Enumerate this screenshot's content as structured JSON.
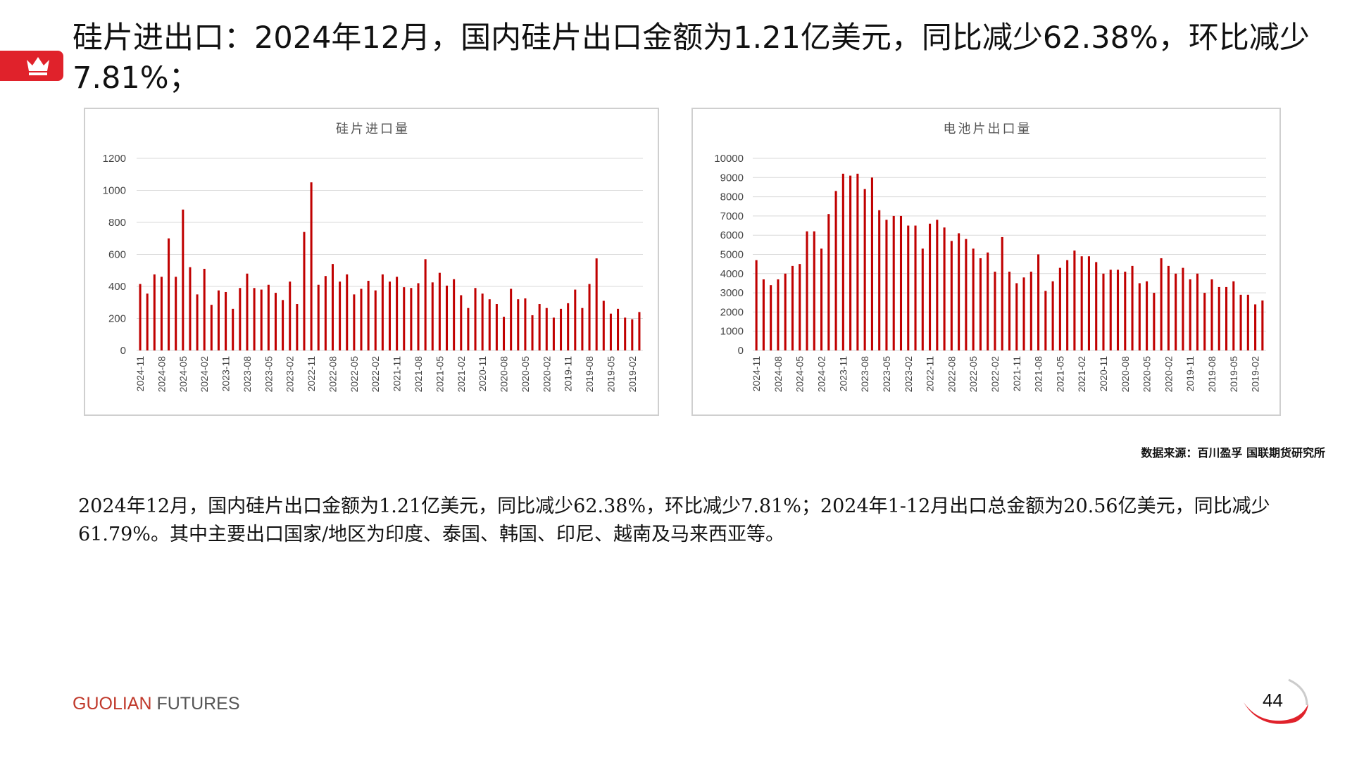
{
  "slide": {
    "heading": "硅片进出口：2024年12月，国内硅片出口金额为1.21亿美元，同比减少62.38%，环比减少7.81%；",
    "source": "数据来源：百川盈孚 国联期货研究所",
    "body": "2024年12月，国内硅片出口金额为1.21亿美元，同比减少62.38%，环比减少7.81%；2024年1-12月出口总金额为20.56亿美元，同比减少61.79%。其中主要出口国家/地区为印度、泰国、韩国、印尼、越南及马来西亚等。",
    "footer_brand": "GUOLIAN",
    "footer_sub": " FUTURES",
    "page_number": "44",
    "logo_icon": "crown-icon",
    "accent_color": "#e0222b",
    "bar_color": "#c00000"
  },
  "chart_data": [
    {
      "type": "bar",
      "title": "硅片进口量",
      "ylim": [
        0,
        1200
      ],
      "yticks": [
        0,
        200,
        400,
        600,
        800,
        1000,
        1200
      ],
      "grid": true,
      "tick_labels": [
        "2024-11",
        "2024-08",
        "2024-05",
        "2024-02",
        "2023-11",
        "2023-08",
        "2023-05",
        "2023-02",
        "2022-11",
        "2022-08",
        "2022-05",
        "2022-02",
        "2021-11",
        "2021-08",
        "2021-05",
        "2021-02",
        "2020-11",
        "2020-08",
        "2020-05",
        "2020-02",
        "2019-11",
        "2019-08",
        "2019-05",
        "2019-02"
      ],
      "values": [
        415,
        355,
        475,
        460,
        700,
        460,
        880,
        520,
        350,
        510,
        285,
        375,
        365,
        260,
        390,
        480,
        390,
        380,
        410,
        360,
        315,
        430,
        290,
        740,
        1050,
        410,
        465,
        540,
        430,
        475,
        350,
        385,
        435,
        375,
        475,
        430,
        460,
        395,
        390,
        420,
        570,
        425,
        485,
        405,
        445,
        345,
        265,
        390,
        355,
        320,
        290,
        210,
        385,
        320,
        325,
        220,
        290,
        265,
        205,
        260,
        295,
        380,
        265,
        415,
        575,
        310,
        230,
        260,
        205,
        195,
        240
      ],
      "xlabel": "",
      "ylabel": ""
    },
    {
      "type": "bar",
      "title": "电池片出口量",
      "ylim": [
        0,
        10000
      ],
      "yticks": [
        0,
        1000,
        2000,
        3000,
        4000,
        5000,
        6000,
        7000,
        8000,
        9000,
        10000
      ],
      "grid": true,
      "tick_labels": [
        "2024-11",
        "2024-08",
        "2024-05",
        "2024-02",
        "2023-11",
        "2023-08",
        "2023-05",
        "2023-02",
        "2022-11",
        "2022-08",
        "2022-05",
        "2022-02",
        "2021-11",
        "2021-08",
        "2021-05",
        "2021-02",
        "2020-11",
        "2020-08",
        "2020-05",
        "2020-02",
        "2019-11",
        "2019-08",
        "2019-05",
        "2019-02"
      ],
      "values": [
        4700,
        3700,
        3400,
        3700,
        4000,
        4400,
        4500,
        6200,
        6200,
        5300,
        7100,
        8300,
        9200,
        9100,
        9200,
        8400,
        9000,
        7300,
        6800,
        7000,
        7000,
        6500,
        6500,
        5300,
        6600,
        6800,
        6400,
        5700,
        6100,
        5800,
        5300,
        4800,
        5100,
        4100,
        5900,
        4100,
        3500,
        3800,
        4100,
        5000,
        3100,
        3600,
        4300,
        4700,
        5200,
        4900,
        4900,
        4600,
        4000,
        4200,
        4200,
        4100,
        4400,
        3500,
        3600,
        3000,
        4800,
        4400,
        4000,
        4300,
        3700,
        4000,
        3000,
        3700,
        3300,
        3300,
        3600,
        2900,
        2900,
        2400,
        2600
      ],
      "xlabel": "",
      "ylabel": ""
    }
  ]
}
